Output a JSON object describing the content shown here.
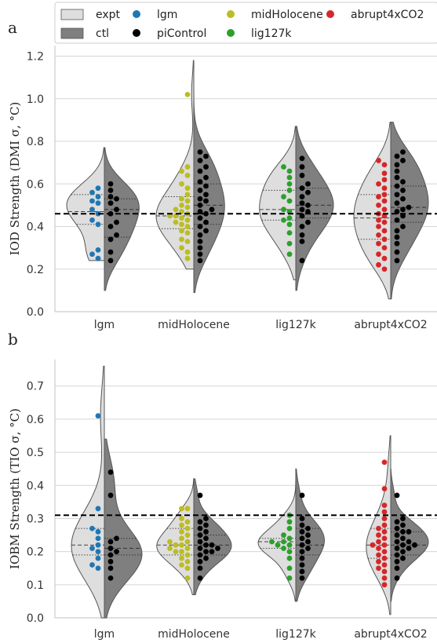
{
  "figure": {
    "panel_labels": [
      "a",
      "b"
    ]
  },
  "legend": {
    "entries": [
      {
        "label": "expt",
        "kind": "patch",
        "color": "#dedede"
      },
      {
        "label": "ctl",
        "kind": "patch",
        "color": "#7f7f7f"
      },
      {
        "label": "lgm",
        "kind": "dot",
        "color": "#1f77b4"
      },
      {
        "label": "piControl",
        "kind": "dot",
        "color": "#000000"
      },
      {
        "label": "midHolocene",
        "kind": "dot",
        "color": "#bcbd22"
      },
      {
        "label": "lig127k",
        "kind": "dot",
        "color": "#2ca02c"
      },
      {
        "label": "abrupt4xCO2",
        "kind": "dot",
        "color": "#d62728"
      }
    ]
  },
  "colors": {
    "expt_fill": "#dedede",
    "ctl_fill": "#7f7f7f",
    "lgm": "#1f77b4",
    "midHolocene": "#bcbd22",
    "lig127k": "#2ca02c",
    "abrupt4xCO2": "#d62728",
    "piControl": "#000000"
  },
  "chart_data": [
    {
      "type": "violin",
      "panel": "a",
      "ylabel": "IOD Strength (DMI σ, °C)",
      "ylim": [
        0.0,
        1.25
      ],
      "yticks": [
        "0.0",
        "0.2",
        "0.4",
        "0.6",
        "0.8",
        "1.0",
        "1.2"
      ],
      "categories": [
        "lgm",
        "midHolocene",
        "lig127k",
        "abrupt4xCO2"
      ],
      "reference_line": 0.46,
      "grid": true,
      "groups": [
        {
          "category": "lgm",
          "expt_color": "#1f77b4",
          "expt": [
            0.25,
            0.27,
            0.29,
            0.41,
            0.43,
            0.46,
            0.48,
            0.51,
            0.52,
            0.54,
            0.56,
            0.58
          ],
          "ctl": [
            0.24,
            0.28,
            0.34,
            0.36,
            0.4,
            0.42,
            0.46,
            0.48,
            0.51,
            0.53,
            0.54,
            0.57,
            0.6
          ],
          "expt_range": [
            0.24,
            0.77
          ],
          "ctl_range": [
            0.1,
            0.77
          ],
          "expt_quartiles": [
            0.41,
            0.47,
            0.55
          ],
          "ctl_quartiles": [
            0.35,
            0.48,
            0.53
          ]
        },
        {
          "category": "midHolocene",
          "expt_color": "#bcbd22",
          "expt": [
            0.25,
            0.28,
            0.3,
            0.33,
            0.34,
            0.37,
            0.38,
            0.4,
            0.41,
            0.42,
            0.43,
            0.44,
            0.45,
            0.45,
            0.46,
            0.47,
            0.48,
            0.49,
            0.5,
            0.52,
            0.53,
            0.55,
            0.58,
            0.6,
            0.64,
            0.66,
            0.68,
            1.02
          ],
          "ctl": [
            0.24,
            0.27,
            0.3,
            0.33,
            0.36,
            0.38,
            0.4,
            0.42,
            0.44,
            0.46,
            0.47,
            0.48,
            0.5,
            0.52,
            0.53,
            0.55,
            0.57,
            0.59,
            0.61,
            0.63,
            0.66,
            0.68,
            0.71,
            0.73,
            0.75
          ],
          "expt_range": [
            0.2,
            1.18
          ],
          "ctl_range": [
            0.09,
            1.18
          ],
          "expt_quartiles": [
            0.39,
            0.45,
            0.54
          ],
          "ctl_quartiles": [
            0.41,
            0.5,
            0.6
          ]
        },
        {
          "category": "lig127k",
          "expt_color": "#2ca02c",
          "expt": [
            0.27,
            0.32,
            0.37,
            0.41,
            0.43,
            0.44,
            0.47,
            0.48,
            0.52,
            0.54,
            0.57,
            0.6,
            0.63,
            0.66,
            0.68
          ],
          "ctl": [
            0.24,
            0.33,
            0.36,
            0.4,
            0.42,
            0.45,
            0.47,
            0.48,
            0.5,
            0.51,
            0.54,
            0.56,
            0.58,
            0.6,
            0.64,
            0.68,
            0.72
          ],
          "expt_range": [
            0.15,
            0.87
          ],
          "ctl_range": [
            0.1,
            0.87
          ],
          "expt_quartiles": [
            0.43,
            0.48,
            0.57
          ],
          "ctl_quartiles": [
            0.44,
            0.5,
            0.58
          ]
        },
        {
          "category": "abrupt4xCO2",
          "expt_color": "#d62728",
          "expt": [
            0.2,
            0.22,
            0.25,
            0.27,
            0.3,
            0.32,
            0.34,
            0.36,
            0.38,
            0.4,
            0.42,
            0.43,
            0.45,
            0.46,
            0.48,
            0.5,
            0.52,
            0.54,
            0.55,
            0.58,
            0.6,
            0.62,
            0.65,
            0.69,
            0.71
          ],
          "ctl": [
            0.24,
            0.28,
            0.32,
            0.35,
            0.38,
            0.4,
            0.43,
            0.45,
            0.47,
            0.48,
            0.49,
            0.51,
            0.53,
            0.55,
            0.57,
            0.59,
            0.61,
            0.63,
            0.66,
            0.69,
            0.71,
            0.73,
            0.75
          ],
          "expt_range": [
            0.06,
            0.89
          ],
          "ctl_range": [
            0.06,
            0.89
          ],
          "expt_quartiles": [
            0.34,
            0.44,
            0.55
          ],
          "ctl_quartiles": [
            0.42,
            0.49,
            0.59
          ]
        }
      ]
    },
    {
      "type": "violin",
      "panel": "b",
      "ylabel": "IOBM Strength (TIO σ, °C)",
      "ylim": [
        0.0,
        0.78
      ],
      "yticks": [
        "0.0",
        "0.1",
        "0.2",
        "0.3",
        "0.4",
        "0.5",
        "0.6",
        "0.7"
      ],
      "categories": [
        "lgm",
        "midHolocene",
        "lig127k",
        "abrupt4xCO2"
      ],
      "reference_line": 0.31,
      "grid": true,
      "groups": [
        {
          "category": "lgm",
          "expt_color": "#1f77b4",
          "expt": [
            0.15,
            0.16,
            0.18,
            0.2,
            0.21,
            0.22,
            0.24,
            0.26,
            0.27,
            0.33,
            0.61
          ],
          "ctl": [
            0.12,
            0.15,
            0.17,
            0.19,
            0.2,
            0.21,
            0.23,
            0.24,
            0.37,
            0.44
          ],
          "expt_range": [
            0.0,
            0.76
          ],
          "ctl_range": [
            0.0,
            0.54
          ],
          "expt_quartiles": [
            0.19,
            0.22,
            0.27
          ],
          "ctl_quartiles": [
            0.19,
            0.21,
            0.24
          ]
        },
        {
          "category": "midHolocene",
          "expt_color": "#bcbd22",
          "expt": [
            0.12,
            0.15,
            0.16,
            0.17,
            0.18,
            0.19,
            0.2,
            0.2,
            0.21,
            0.21,
            0.22,
            0.22,
            0.23,
            0.23,
            0.24,
            0.25,
            0.26,
            0.27,
            0.28,
            0.29,
            0.3,
            0.33,
            0.33
          ],
          "ctl": [
            0.12,
            0.15,
            0.17,
            0.18,
            0.19,
            0.2,
            0.2,
            0.21,
            0.21,
            0.22,
            0.22,
            0.23,
            0.24,
            0.25,
            0.26,
            0.27,
            0.28,
            0.29,
            0.3,
            0.37
          ],
          "expt_range": [
            0.07,
            0.42
          ],
          "ctl_range": [
            0.07,
            0.42
          ],
          "expt_quartiles": [
            0.19,
            0.22,
            0.27
          ],
          "ctl_quartiles": [
            0.19,
            0.22,
            0.25
          ]
        },
        {
          "category": "lig127k",
          "expt_color": "#2ca02c",
          "expt": [
            0.12,
            0.15,
            0.18,
            0.2,
            0.21,
            0.22,
            0.22,
            0.23,
            0.23,
            0.24,
            0.25,
            0.27,
            0.29,
            0.31
          ],
          "ctl": [
            0.12,
            0.14,
            0.16,
            0.18,
            0.2,
            0.21,
            0.22,
            0.23,
            0.24,
            0.25,
            0.26,
            0.27,
            0.28,
            0.3,
            0.37
          ],
          "expt_range": [
            0.05,
            0.45
          ],
          "ctl_range": [
            0.05,
            0.45
          ],
          "expt_quartiles": [
            0.21,
            0.23,
            0.24
          ],
          "ctl_quartiles": [
            0.19,
            0.22,
            0.27
          ]
        },
        {
          "category": "abrupt4xCO2",
          "expt_color": "#d62728",
          "expt": [
            0.1,
            0.12,
            0.14,
            0.15,
            0.16,
            0.17,
            0.18,
            0.19,
            0.2,
            0.21,
            0.22,
            0.22,
            0.23,
            0.24,
            0.25,
            0.26,
            0.27,
            0.28,
            0.3,
            0.32,
            0.34,
            0.39,
            0.47
          ],
          "ctl": [
            0.12,
            0.15,
            0.17,
            0.18,
            0.19,
            0.2,
            0.21,
            0.21,
            0.22,
            0.22,
            0.23,
            0.23,
            0.24,
            0.25,
            0.26,
            0.26,
            0.27,
            0.28,
            0.29,
            0.3,
            0.37
          ],
          "expt_range": [
            0.01,
            0.55
          ],
          "ctl_range": [
            0.05,
            0.45
          ],
          "expt_quartiles": [
            0.18,
            0.22,
            0.27
          ],
          "ctl_quartiles": [
            0.19,
            0.22,
            0.26
          ]
        }
      ]
    }
  ]
}
